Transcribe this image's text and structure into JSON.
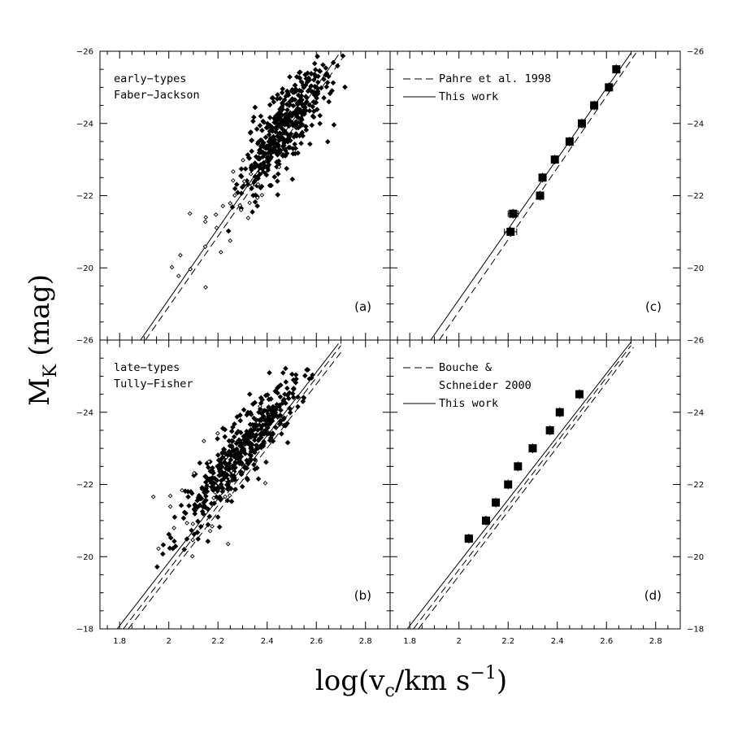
{
  "figure": {
    "ylabel_main": "M",
    "ylabel_sub": "K",
    "ylabel_unit": "(mag)",
    "xlabel_pre": "log(v",
    "xlabel_sub": "c",
    "xlabel_mid": "/km s",
    "xlabel_sup": "−1",
    "xlabel_post": ")"
  },
  "chart_data": [
    {
      "panel": "a",
      "type": "scatter",
      "label": "(a)",
      "text_lines": [
        "early−types",
        "Faber−Jackson"
      ],
      "xlim": [
        1.72,
        2.9
      ],
      "ylim": [
        -18,
        -26
      ],
      "xticks": [
        1.8,
        2,
        2.2,
        2.4,
        2.6,
        2.8
      ],
      "yticks": [
        -20,
        -22,
        -24,
        -26
      ],
      "ytick_labels": [
        "−20",
        "−22",
        "−24",
        "−26"
      ],
      "y_bottom_label": "−26",
      "lines": [
        {
          "name": "solid fit",
          "style": "solid",
          "points": [
            [
              1.885,
              -18.0
            ],
            [
              2.69,
              -25.9
            ]
          ]
        },
        {
          "name": "dashed fit",
          "style": "dashed",
          "points": [
            [
              1.905,
              -18.0
            ],
            [
              2.705,
              -25.8
            ]
          ]
        }
      ],
      "series": [
        {
          "name": "filled",
          "marker": "filled-diamond",
          "seed": 11,
          "count": 460,
          "x_mean": 2.47,
          "x_sd": 0.085,
          "slope": -8.5,
          "intercept": -2.9,
          "scatter_sd": 0.55,
          "x_range": [
            2.05,
            2.78
          ],
          "y_range": [
            -25.9,
            -20.8
          ]
        },
        {
          "name": "open",
          "marker": "open-diamond",
          "seed": 23,
          "count": 32,
          "x_mean": 2.3,
          "x_sd": 0.18,
          "slope": -8.0,
          "intercept": -4.0,
          "scatter_sd": 0.85,
          "x_range": [
            1.86,
            2.6
          ],
          "y_range": [
            -23.0,
            -19.4
          ]
        }
      ]
    },
    {
      "panel": "b",
      "type": "scatter",
      "label": "(b)",
      "text_lines": [
        "late−types",
        "Tully−Fisher"
      ],
      "xlim": [
        1.72,
        2.9
      ],
      "ylim": [
        -18,
        -26
      ],
      "xticks": [
        1.8,
        2,
        2.2,
        2.4,
        2.6,
        2.8
      ],
      "xtick_labels": [
        "1.8",
        "2",
        "2.2",
        "2.4",
        "2.6",
        "2.8"
      ],
      "yticks": [
        -18,
        -20,
        -22,
        -24
      ],
      "ytick_labels": [
        "−18",
        "−20",
        "−22",
        "−24"
      ],
      "lines": [
        {
          "name": "solid fit",
          "style": "solid",
          "points": [
            [
              1.79,
              -18.0
            ],
            [
              2.69,
              -25.9
            ]
          ]
        },
        {
          "name": "dashed fit 1",
          "style": "dashed",
          "points": [
            [
              1.815,
              -18.0
            ],
            [
              2.7,
              -25.85
            ]
          ]
        },
        {
          "name": "dashed fit 2",
          "style": "dashed",
          "points": [
            [
              1.835,
              -18.0
            ],
            [
              2.71,
              -25.75
            ]
          ]
        }
      ],
      "series": [
        {
          "name": "filled",
          "marker": "filled-diamond",
          "seed": 37,
          "count": 470,
          "x_mean": 2.3,
          "x_sd": 0.12,
          "slope": -8.0,
          "intercept": -4.55,
          "scatter_sd": 0.45,
          "x_range": [
            1.86,
            2.62
          ],
          "y_range": [
            -25.3,
            -19.6
          ]
        },
        {
          "name": "open",
          "marker": "open-diamond",
          "seed": 53,
          "count": 30,
          "x_mean": 2.12,
          "x_sd": 0.12,
          "slope": -8.0,
          "intercept": -4.5,
          "scatter_sd": 0.9,
          "x_range": [
            1.8,
            2.5
          ],
          "y_range": [
            -24.2,
            -20.0
          ]
        }
      ]
    },
    {
      "panel": "c",
      "type": "scatter",
      "label": "(c)",
      "legend": [
        {
          "style": "dashed",
          "label": "Pahre et al. 1998"
        },
        {
          "style": "solid",
          "label": "This work"
        }
      ],
      "xlim": [
        1.72,
        2.9
      ],
      "ylim": [
        -18,
        -26
      ],
      "xticks": [
        1.8,
        2,
        2.2,
        2.4,
        2.6,
        2.8
      ],
      "yticks": [
        -20,
        -22,
        -24,
        -26
      ],
      "ytick_labels": [
        "−20",
        "−22",
        "−24",
        "−26"
      ],
      "y_bottom_label": "−26",
      "lines": [
        {
          "name": "This work",
          "style": "solid",
          "points": [
            [
              1.885,
              -18.0
            ],
            [
              2.7,
              -25.95
            ]
          ]
        },
        {
          "name": "Pahre et al. 1998",
          "style": "dashed",
          "points": [
            [
              1.92,
              -18.0
            ],
            [
              2.72,
              -25.95
            ]
          ]
        }
      ],
      "points": [
        {
          "x": 2.21,
          "y": -21.0,
          "xerr": 0.025
        },
        {
          "x": 2.22,
          "y": -21.5,
          "xerr": 0.02
        },
        {
          "x": 2.33,
          "y": -22.0,
          "xerr": 0.01
        },
        {
          "x": 2.34,
          "y": -22.5,
          "xerr": 0.01
        },
        {
          "x": 2.39,
          "y": -23.0,
          "xerr": 0.01
        },
        {
          "x": 2.45,
          "y": -23.5,
          "xerr": 0.01
        },
        {
          "x": 2.5,
          "y": -24.0,
          "xerr": 0.01
        },
        {
          "x": 2.55,
          "y": -24.5,
          "xerr": 0.01
        },
        {
          "x": 2.61,
          "y": -25.0,
          "xerr": 0.01
        },
        {
          "x": 2.64,
          "y": -25.5,
          "xerr": 0.01
        }
      ]
    },
    {
      "panel": "d",
      "type": "scatter",
      "label": "(d)",
      "legend": [
        {
          "style": "dashed",
          "label": "Bouche &",
          "label2": "Schneider 2000"
        },
        {
          "style": "solid",
          "label": "This work"
        }
      ],
      "xlim": [
        1.72,
        2.9
      ],
      "ylim": [
        -18,
        -26
      ],
      "xticks": [
        1.8,
        2,
        2.2,
        2.4,
        2.6,
        2.8
      ],
      "xtick_labels": [
        "1.8",
        "2",
        "2.2",
        "2.4",
        "2.6",
        "2.8"
      ],
      "yticks": [
        -18,
        -20,
        -22,
        -24
      ],
      "ytick_labels": [
        "−18",
        "−20",
        "−22",
        "−24"
      ],
      "lines": [
        {
          "name": "This work",
          "style": "solid",
          "points": [
            [
              1.79,
              -18.0
            ],
            [
              2.7,
              -25.95
            ]
          ]
        },
        {
          "name": "Bouche & Schneider 2000 a",
          "style": "dashed",
          "points": [
            [
              1.815,
              -18.0
            ],
            [
              2.7,
              -25.85
            ]
          ]
        },
        {
          "name": "Bouche & Schneider 2000 b",
          "style": "dashed",
          "points": [
            [
              1.835,
              -18.0
            ],
            [
              2.71,
              -25.8
            ]
          ]
        }
      ],
      "points": [
        {
          "x": 2.04,
          "y": -20.5,
          "xerr": 0.015
        },
        {
          "x": 2.11,
          "y": -21.0,
          "xerr": 0.01
        },
        {
          "x": 2.15,
          "y": -21.5,
          "xerr": 0.01
        },
        {
          "x": 2.2,
          "y": -22.0,
          "xerr": 0.01
        },
        {
          "x": 2.24,
          "y": -22.5,
          "xerr": 0.01
        },
        {
          "x": 2.3,
          "y": -23.0,
          "xerr": 0.01
        },
        {
          "x": 2.37,
          "y": -23.5,
          "xerr": 0.01
        },
        {
          "x": 2.41,
          "y": -24.0,
          "xerr": 0.01
        },
        {
          "x": 2.49,
          "y": -24.5,
          "xerr": 0.01
        }
      ]
    }
  ]
}
